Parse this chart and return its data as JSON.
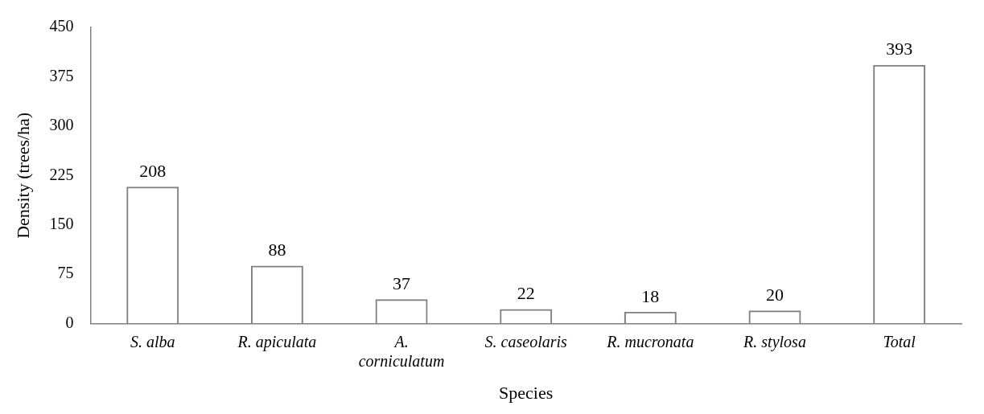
{
  "chart_data": {
    "type": "bar",
    "xlabel": "Species",
    "ylabel": "Density (trees/ha)",
    "categories": [
      "S. alba",
      "R. apiculata",
      "A. corniculatum",
      "S. caseolaris",
      "R. mucronata",
      "R. stylosa",
      "Total"
    ],
    "values": [
      208,
      88,
      37,
      22,
      18,
      20,
      393
    ],
    "color": "#7f7f7f",
    "ylim": [
      0,
      450
    ],
    "yticks": [
      0,
      75,
      150,
      225,
      300,
      375,
      450
    ],
    "grid": false,
    "legend": false,
    "data_labels": true
  }
}
